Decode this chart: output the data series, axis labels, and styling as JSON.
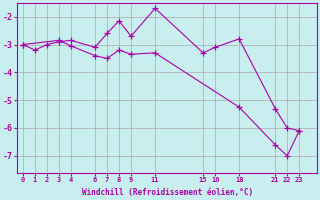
{
  "xlabel": "Windchill (Refroidissement éolien,°C)",
  "background_color": "#c8eef0",
  "line_color": "#aa00aa",
  "grid_color": "#aaaaaa",
  "line1_x": [
    0,
    1,
    2,
    3,
    4,
    6,
    7,
    8,
    9,
    11,
    15,
    16,
    18,
    21,
    22,
    23
  ],
  "line1_y": [
    -3.0,
    -3.2,
    -3.0,
    -2.9,
    -2.85,
    -3.1,
    -2.6,
    -2.15,
    -2.7,
    -1.7,
    -3.3,
    -3.1,
    -2.8,
    -5.3,
    -6.0,
    -6.1
  ],
  "line2_x": [
    0,
    3,
    4,
    6,
    7,
    8,
    9,
    11,
    18,
    21,
    22,
    23
  ],
  "line2_y": [
    -3.0,
    -2.85,
    -3.05,
    -3.4,
    -3.5,
    -3.2,
    -3.35,
    -3.3,
    -5.25,
    -6.6,
    -7.0,
    -6.1
  ],
  "xlim": [
    -0.5,
    24.5
  ],
  "ylim": [
    -7.6,
    -1.5
  ],
  "xticks": [
    0,
    1,
    2,
    3,
    4,
    6,
    7,
    8,
    9,
    11,
    15,
    16,
    18,
    21,
    22,
    23
  ],
  "yticks": [
    -7,
    -6,
    -5,
    -4,
    -3,
    -2
  ],
  "figsize": [
    3.2,
    2.0
  ],
  "dpi": 100
}
